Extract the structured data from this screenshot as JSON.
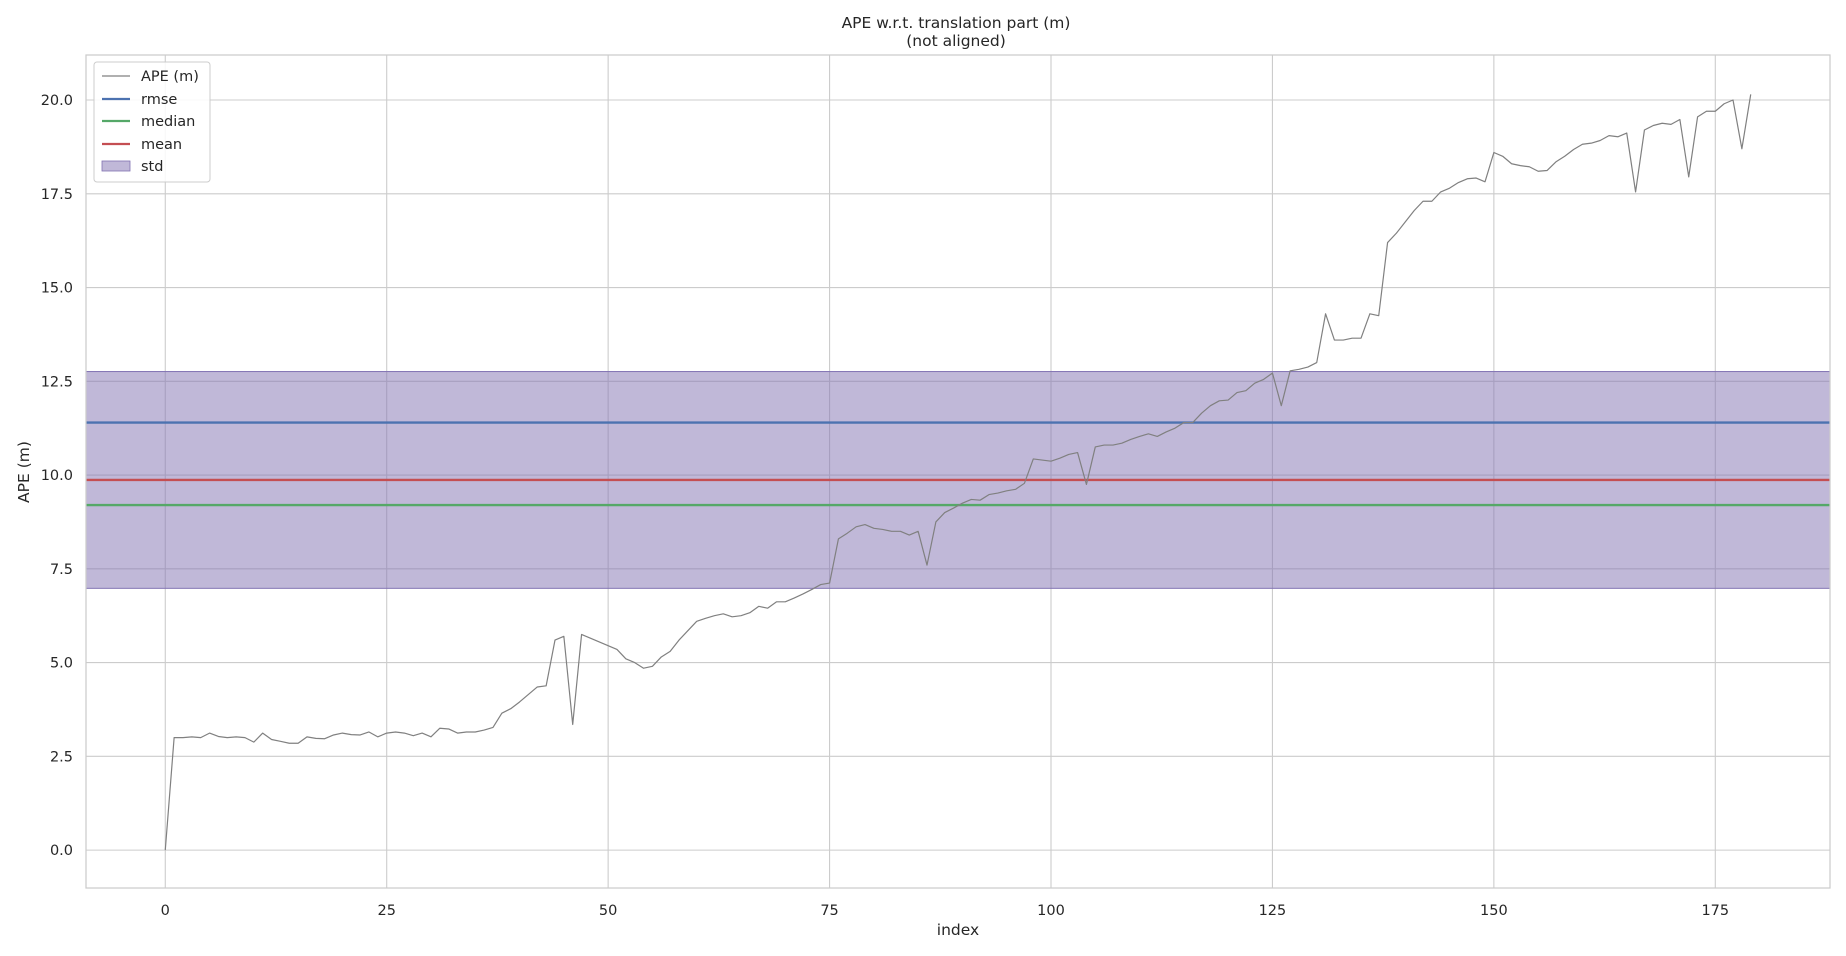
{
  "chart_data": {
    "type": "line",
    "title": "APE w.r.t. translation part (m)",
    "subtitle": "(not aligned)",
    "xlabel": "index",
    "ylabel": "APE (m)",
    "xlim": [
      -8.95,
      187.95
    ],
    "ylim": [
      -1.01,
      21.2
    ],
    "x_ticks": [
      0,
      25,
      50,
      75,
      100,
      125,
      150,
      175
    ],
    "y_ticks": [
      0.0,
      2.5,
      5.0,
      7.5,
      10.0,
      12.5,
      15.0,
      17.5,
      20.0
    ],
    "y_tick_labels": [
      "0.0",
      "2.5",
      "5.0",
      "7.5",
      "10.0",
      "12.5",
      "15.0",
      "17.5",
      "20.0"
    ],
    "grid": true,
    "legend_position": "top-left",
    "series": [
      {
        "name": "APE (m)",
        "color": "#808080",
        "values": [
          0.0,
          3.0,
          3.0,
          3.02,
          3.0,
          3.12,
          3.03,
          3.0,
          3.02,
          3.0,
          2.88,
          3.12,
          2.95,
          2.9,
          2.85,
          2.85,
          3.02,
          2.98,
          2.97,
          3.07,
          3.12,
          3.08,
          3.07,
          3.15,
          3.02,
          3.12,
          3.15,
          3.12,
          3.05,
          3.12,
          3.02,
          3.25,
          3.23,
          3.12,
          3.15,
          3.15,
          3.2,
          3.27,
          3.65,
          3.77,
          3.95,
          4.15,
          4.35,
          4.38,
          5.6,
          5.7,
          3.35,
          5.75,
          5.65,
          5.55,
          5.45,
          5.35,
          5.1,
          5.0,
          4.85,
          4.9,
          5.15,
          5.3,
          5.6,
          5.85,
          6.1,
          6.18,
          6.25,
          6.3,
          6.22,
          6.25,
          6.33,
          6.5,
          6.45,
          6.62,
          6.62,
          6.72,
          6.83,
          6.95,
          7.08,
          7.12,
          8.3,
          8.45,
          8.62,
          8.68,
          8.58,
          8.55,
          8.5,
          8.5,
          8.4,
          8.5,
          7.6,
          8.75,
          9.0,
          9.12,
          9.25,
          9.35,
          9.33,
          9.48,
          9.52,
          9.58,
          9.62,
          9.78,
          10.43,
          10.4,
          10.37,
          10.45,
          10.55,
          10.6,
          9.75,
          10.75,
          10.8,
          10.8,
          10.85,
          10.95,
          11.03,
          11.1,
          11.03,
          11.15,
          11.25,
          11.4,
          11.4,
          11.65,
          11.85,
          11.98,
          12.0,
          12.2,
          12.25,
          12.45,
          12.55,
          12.72,
          11.85,
          12.78,
          12.82,
          12.88,
          13.0,
          14.3,
          13.6,
          13.6,
          13.65,
          13.65,
          14.3,
          14.25,
          16.2,
          16.45,
          16.75,
          17.05,
          17.3,
          17.3,
          17.55,
          17.65,
          17.8,
          17.9,
          17.92,
          17.82,
          18.6,
          18.5,
          18.3,
          18.25,
          18.22,
          18.1,
          18.12,
          18.35,
          18.5,
          18.68,
          18.82,
          18.85,
          18.92,
          19.05,
          19.02,
          19.12,
          17.55,
          19.2,
          19.32,
          19.38,
          19.35,
          19.48,
          17.95,
          19.55,
          19.7,
          19.7,
          19.9,
          20.0,
          18.7,
          20.15
        ]
      },
      {
        "name": "rmse",
        "color": "#4c72b0",
        "value": 11.4
      },
      {
        "name": "median",
        "color": "#55a868",
        "value": 9.2
      },
      {
        "name": "mean",
        "color": "#c44e52",
        "value": 9.87
      },
      {
        "name": "std",
        "color": "#8172b2",
        "range": [
          6.98,
          12.76
        ]
      }
    ]
  }
}
